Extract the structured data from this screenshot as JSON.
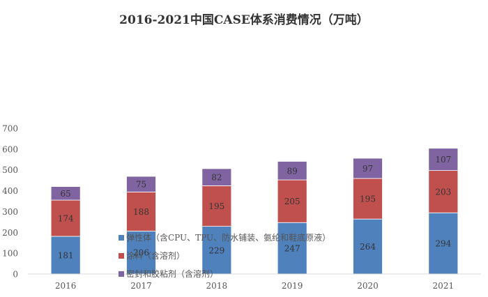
{
  "chart_data": {
    "type": "bar",
    "stacked": true,
    "title": "2016-2021中国CASE体系消费情况（万吨）",
    "xlabel": "",
    "ylabel": "",
    "categories": [
      "2016",
      "2017",
      "2018",
      "2019",
      "2020",
      "2021"
    ],
    "ylim": [
      0,
      700
    ],
    "yticks": [
      0,
      100,
      200,
      300,
      400,
      500,
      600,
      700
    ],
    "grid": false,
    "legend_position": "overlapping-bottom-center",
    "series": [
      {
        "name": "弹性体（含CPU、TPU、防水铺装、氨纶和鞋底原液）",
        "color": "#4f81bd",
        "values": [
          181,
          206,
          229,
          247,
          264,
          294
        ]
      },
      {
        "name": "涂料（含溶剂）",
        "color": "#c0504d",
        "values": [
          174,
          188,
          195,
          205,
          195,
          203
        ]
      },
      {
        "name": "密封和胶粘剂（含溶剂）",
        "color": "#8064a2",
        "values": [
          65,
          75,
          82,
          89,
          97,
          107
        ]
      }
    ]
  }
}
